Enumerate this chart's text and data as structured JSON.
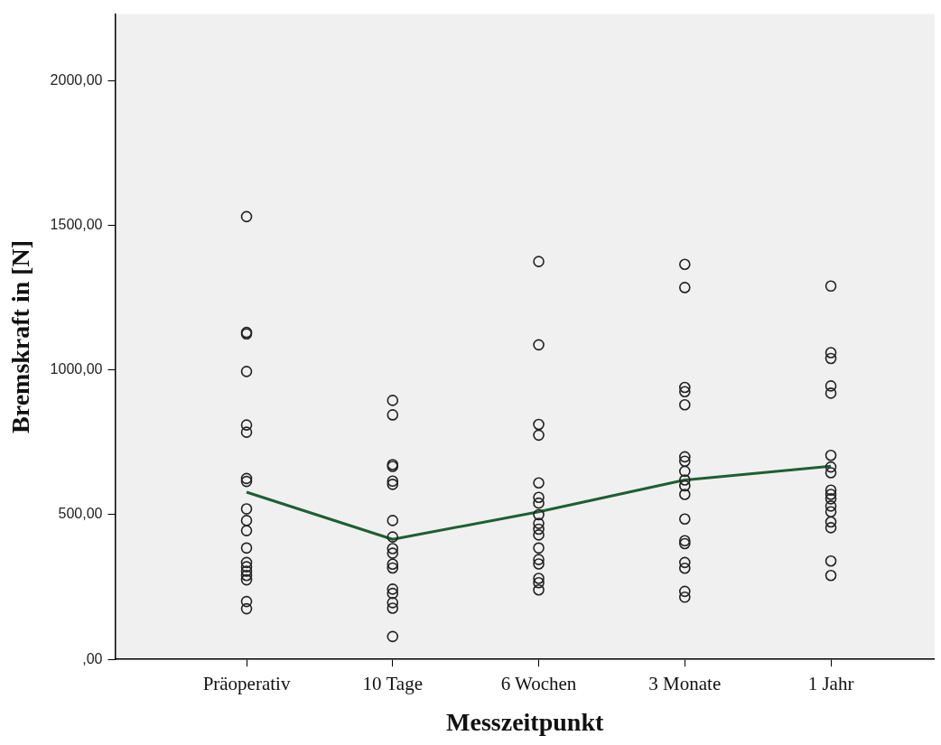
{
  "chart_data": {
    "type": "scatter",
    "xlabel": "Messzeitpunkt",
    "ylabel": "Bremskraft in [N]",
    "categories": [
      "Präoperativ",
      "10 Tage",
      "6 Wochen",
      "3 Monate",
      "1 Jahr"
    ],
    "ylim": [
      0,
      2230
    ],
    "yticks": [
      {
        "value": 0,
        "label": ",00"
      },
      {
        "value": 500,
        "label": "500,00"
      },
      {
        "value": 1000,
        "label": "1000,00"
      },
      {
        "value": 1500,
        "label": "1500,00"
      },
      {
        "value": 2000,
        "label": "2000,00"
      }
    ],
    "grid": false,
    "legend": false,
    "series": [
      {
        "color": "#222222",
        "marker": "circle",
        "x": [
          "Präoperativ",
          "Präoperativ",
          "Präoperativ",
          "Präoperativ",
          "Präoperativ",
          "Präoperativ",
          "Präoperativ",
          "Präoperativ",
          "Präoperativ",
          "Präoperativ",
          "Präoperativ",
          "Präoperativ",
          "Präoperativ",
          "Präoperativ",
          "Präoperativ",
          "Präoperativ",
          "Präoperativ",
          "Präoperativ",
          "Präoperativ",
          "10 Tage",
          "10 Tage",
          "10 Tage",
          "10 Tage",
          "10 Tage",
          "10 Tage",
          "10 Tage",
          "10 Tage",
          "10 Tage",
          "10 Tage",
          "10 Tage",
          "10 Tage",
          "10 Tage",
          "10 Tage",
          "10 Tage",
          "10 Tage",
          "10 Tage",
          "6 Wochen",
          "6 Wochen",
          "6 Wochen",
          "6 Wochen",
          "6 Wochen",
          "6 Wochen",
          "6 Wochen",
          "6 Wochen",
          "6 Wochen",
          "6 Wochen",
          "6 Wochen",
          "6 Wochen",
          "6 Wochen",
          "6 Wochen",
          "6 Wochen",
          "6 Wochen",
          "6 Wochen",
          "3 Monate",
          "3 Monate",
          "3 Monate",
          "3 Monate",
          "3 Monate",
          "3 Monate",
          "3 Monate",
          "3 Monate",
          "3 Monate",
          "3 Monate",
          "3 Monate",
          "3 Monate",
          "3 Monate",
          "3 Monate",
          "3 Monate",
          "3 Monate",
          "3 Monate",
          "3 Monate",
          "1 Jahr",
          "1 Jahr",
          "1 Jahr",
          "1 Jahr",
          "1 Jahr",
          "1 Jahr",
          "1 Jahr",
          "1 Jahr",
          "1 Jahr",
          "1 Jahr",
          "1 Jahr",
          "1 Jahr",
          "1 Jahr",
          "1 Jahr",
          "1 Jahr",
          "1 Jahr",
          "1 Jahr"
        ],
        "values": [
          1530,
          1130,
          1125,
          995,
          810,
          785,
          625,
          615,
          520,
          480,
          445,
          385,
          335,
          320,
          305,
          290,
          275,
          200,
          175,
          895,
          845,
          673,
          667,
          616,
          605,
          480,
          423,
          383,
          367,
          329,
          316,
          243,
          228,
          196,
          177,
          79,
          1375,
          1087,
          812,
          775,
          610,
          560,
          540,
          500,
          470,
          450,
          430,
          385,
          345,
          330,
          280,
          265,
          240,
          1365,
          1285,
          940,
          925,
          880,
          700,
          685,
          650,
          620,
          600,
          570,
          485,
          410,
          400,
          335,
          315,
          235,
          215,
          1290,
          1060,
          1040,
          945,
          920,
          705,
          665,
          645,
          585,
          570,
          555,
          530,
          510,
          475,
          455,
          340,
          290
        ]
      },
      {
        "type": "line",
        "color": "#1e5f32",
        "marker": "none",
        "values": [
          578,
          415,
          510,
          620,
          668
        ]
      }
    ]
  }
}
